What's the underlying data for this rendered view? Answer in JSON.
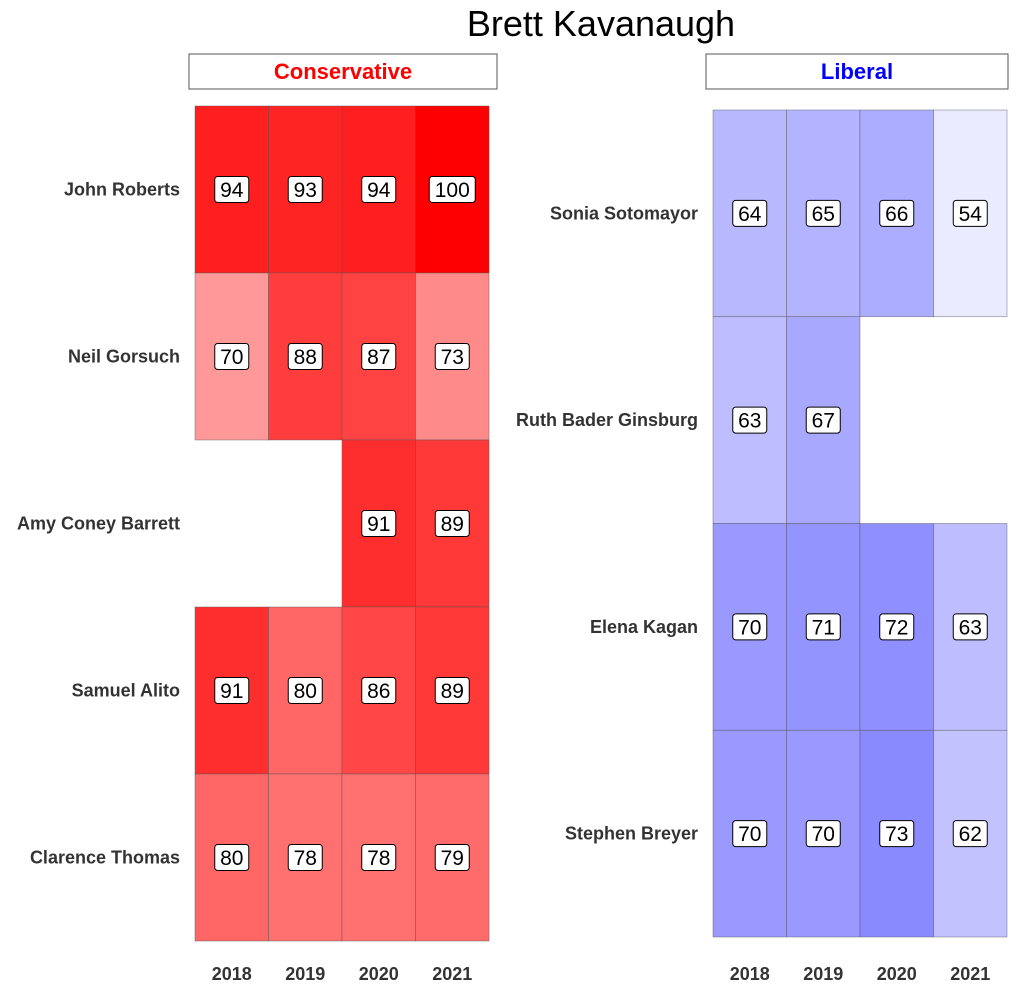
{
  "chart_data": {
    "type": "heatmap",
    "title": "Brett Kavanaugh",
    "years": [
      "2018",
      "2019",
      "2020",
      "2021"
    ],
    "panels": [
      {
        "name": "Conservative",
        "name_color": "#ff0000",
        "base_color": "#ff0000",
        "rows": [
          {
            "justice": "John Roberts",
            "values": [
              94,
              93,
              94,
              100
            ]
          },
          {
            "justice": "Neil Gorsuch",
            "values": [
              70,
              88,
              87,
              73
            ]
          },
          {
            "justice": "Amy Coney Barrett",
            "values": [
              null,
              null,
              91,
              89
            ]
          },
          {
            "justice": "Samuel Alito",
            "values": [
              91,
              80,
              86,
              89
            ]
          },
          {
            "justice": "Clarence Thomas",
            "values": [
              80,
              78,
              78,
              79
            ]
          }
        ]
      },
      {
        "name": "Liberal",
        "name_color": "#0000ff",
        "base_color": "#0000ff",
        "rows": [
          {
            "justice": "Sonia Sotomayor",
            "values": [
              64,
              65,
              66,
              54
            ]
          },
          {
            "justice": "Ruth Bader Ginsburg",
            "values": [
              63,
              67,
              null,
              null
            ]
          },
          {
            "justice": "Elena Kagan",
            "values": [
              70,
              71,
              72,
              63
            ]
          },
          {
            "justice": "Stephen Breyer",
            "values": [
              70,
              70,
              73,
              62
            ]
          }
        ]
      }
    ]
  }
}
